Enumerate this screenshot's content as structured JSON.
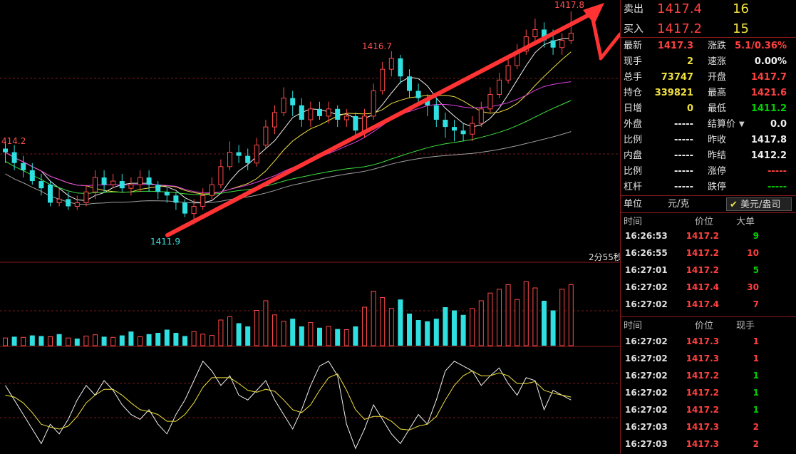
{
  "chart_data": {
    "type": "candlestick",
    "price_labels": {
      "high": "1417.8",
      "mid_high": "1416.7",
      "left": "414.2",
      "low": "1411.9"
    },
    "countdown": "2分55秒",
    "candles": [
      [
        1414.0,
        1413.9,
        1414.2,
        1413.6
      ],
      [
        1413.9,
        1413.6,
        1414.1,
        1413.4
      ],
      [
        1413.6,
        1413.4,
        1413.8,
        1413.2
      ],
      [
        1413.4,
        1413.1,
        1413.6,
        1413.0
      ],
      [
        1413.1,
        1412.9,
        1413.3,
        1412.7
      ],
      [
        1413.0,
        1412.5,
        1413.1,
        1412.4
      ],
      [
        1412.5,
        1412.6,
        1412.9,
        1412.4
      ],
      [
        1412.6,
        1412.4,
        1412.8,
        1412.3
      ],
      [
        1412.4,
        1412.5,
        1412.7,
        1412.3
      ],
      [
        1412.5,
        1412.8,
        1413.0,
        1412.4
      ],
      [
        1412.8,
        1413.2,
        1413.4,
        1412.6
      ],
      [
        1413.2,
        1413.0,
        1413.4,
        1412.8
      ],
      [
        1413.0,
        1413.1,
        1413.3,
        1412.9
      ],
      [
        1413.1,
        1412.9,
        1413.3,
        1412.8
      ],
      [
        1412.9,
        1413.0,
        1413.2,
        1412.7
      ],
      [
        1413.0,
        1413.2,
        1413.4,
        1412.8
      ],
      [
        1413.2,
        1413.0,
        1413.4,
        1412.8
      ],
      [
        1413.0,
        1412.8,
        1413.1,
        1412.6
      ],
      [
        1412.8,
        1412.7,
        1412.9,
        1412.5
      ],
      [
        1412.7,
        1412.5,
        1412.8,
        1412.3
      ],
      [
        1412.5,
        1412.2,
        1412.6,
        1412.1
      ],
      [
        1412.2,
        1412.4,
        1412.6,
        1411.9
      ],
      [
        1412.4,
        1412.7,
        1412.9,
        1412.3
      ],
      [
        1412.7,
        1413.0,
        1413.2,
        1412.6
      ],
      [
        1413.0,
        1413.5,
        1413.7,
        1412.9
      ],
      [
        1413.5,
        1413.9,
        1414.2,
        1413.4
      ],
      [
        1413.9,
        1413.8,
        1414.1,
        1413.6
      ],
      [
        1413.8,
        1413.6,
        1414.0,
        1413.4
      ],
      [
        1413.6,
        1414.1,
        1414.3,
        1413.5
      ],
      [
        1414.1,
        1414.6,
        1414.8,
        1414.0
      ],
      [
        1414.6,
        1415.0,
        1415.2,
        1414.4
      ],
      [
        1415.0,
        1415.4,
        1415.7,
        1414.9
      ],
      [
        1415.4,
        1415.2,
        1415.6,
        1414.9
      ],
      [
        1415.2,
        1414.8,
        1415.4,
        1414.6
      ],
      [
        1414.8,
        1415.1,
        1415.3,
        1414.6
      ],
      [
        1415.1,
        1414.9,
        1415.3,
        1414.8
      ],
      [
        1414.9,
        1415.1,
        1415.3,
        1414.7
      ],
      [
        1415.1,
        1414.8,
        1415.2,
        1414.6
      ],
      [
        1414.8,
        1414.9,
        1415.1,
        1414.6
      ],
      [
        1414.9,
        1414.5,
        1415.0,
        1414.3
      ],
      [
        1414.5,
        1414.9,
        1415.1,
        1414.3
      ],
      [
        1414.9,
        1415.6,
        1415.8,
        1414.8
      ],
      [
        1415.6,
        1416.2,
        1416.4,
        1415.5
      ],
      [
        1416.2,
        1416.5,
        1416.7,
        1416.0
      ],
      [
        1416.5,
        1416.0,
        1416.6,
        1415.8
      ],
      [
        1416.0,
        1415.6,
        1416.2,
        1415.4
      ],
      [
        1415.6,
        1415.4,
        1415.8,
        1415.2
      ],
      [
        1415.4,
        1415.2,
        1415.5,
        1414.9
      ],
      [
        1415.2,
        1414.8,
        1415.4,
        1414.6
      ],
      [
        1414.8,
        1414.6,
        1415.0,
        1414.3
      ],
      [
        1414.6,
        1414.5,
        1414.8,
        1414.2
      ],
      [
        1414.5,
        1414.4,
        1414.7,
        1414.2
      ],
      [
        1414.4,
        1414.7,
        1414.9,
        1414.2
      ],
      [
        1414.7,
        1415.1,
        1415.3,
        1414.6
      ],
      [
        1415.1,
        1415.5,
        1415.7,
        1415.0
      ],
      [
        1415.5,
        1415.9,
        1416.1,
        1415.4
      ],
      [
        1415.9,
        1416.3,
        1416.5,
        1415.8
      ],
      [
        1416.3,
        1416.7,
        1416.9,
        1416.2
      ],
      [
        1416.7,
        1417.1,
        1417.3,
        1416.6
      ],
      [
        1417.1,
        1417.3,
        1417.6,
        1416.9
      ],
      [
        1417.3,
        1417.0,
        1417.5,
        1416.8
      ],
      [
        1417.0,
        1416.8,
        1417.3,
        1416.6
      ],
      [
        1416.8,
        1417.0,
        1417.2,
        1416.6
      ],
      [
        1417.0,
        1417.2,
        1417.8,
        1416.9
      ]
    ],
    "volume": [
      12,
      14,
      13,
      16,
      15,
      14,
      18,
      12,
      11,
      15,
      17,
      14,
      13,
      16,
      22,
      14,
      18,
      20,
      25,
      20,
      15,
      22,
      18,
      16,
      40,
      45,
      35,
      30,
      55,
      70,
      48,
      38,
      42,
      30,
      36,
      28,
      30,
      26,
      25,
      30,
      60,
      85,
      75,
      58,
      72,
      50,
      40,
      38,
      42,
      60,
      55,
      48,
      58,
      70,
      82,
      88,
      95,
      72,
      100,
      90,
      70,
      55,
      88,
      95
    ],
    "volume_up": [
      1,
      0,
      1,
      0,
      0,
      1,
      0,
      1,
      0,
      1,
      1,
      0,
      1,
      0,
      0,
      1,
      0,
      0,
      0,
      0,
      0,
      1,
      1,
      1,
      1,
      1,
      0,
      0,
      1,
      1,
      1,
      1,
      0,
      0,
      1,
      0,
      1,
      0,
      1,
      0,
      1,
      1,
      1,
      1,
      0,
      0,
      0,
      0,
      0,
      0,
      0,
      0,
      1,
      1,
      1,
      1,
      1,
      1,
      1,
      1,
      0,
      0,
      1,
      1
    ],
    "kd_k": [
      0.7,
      0.55,
      0.4,
      0.25,
      0.1,
      0.3,
      0.2,
      0.35,
      0.55,
      0.7,
      0.6,
      0.75,
      0.65,
      0.5,
      0.4,
      0.35,
      0.45,
      0.3,
      0.2,
      0.4,
      0.55,
      0.75,
      0.95,
      0.85,
      0.7,
      0.8,
      0.6,
      0.55,
      0.65,
      0.75,
      0.55,
      0.4,
      0.25,
      0.45,
      0.7,
      0.9,
      0.95,
      0.8,
      0.3,
      0.05,
      0.25,
      0.5,
      0.35,
      0.2,
      0.1,
      0.25,
      0.4,
      0.3,
      0.55,
      0.85,
      0.95,
      0.9,
      0.85,
      0.7,
      0.8,
      0.88,
      0.72,
      0.6,
      0.78,
      0.75,
      0.45,
      0.65,
      0.6,
      0.55
    ],
    "kd_d": [
      0.6,
      0.58,
      0.52,
      0.42,
      0.3,
      0.27,
      0.25,
      0.28,
      0.38,
      0.52,
      0.6,
      0.66,
      0.66,
      0.6,
      0.52,
      0.45,
      0.43,
      0.4,
      0.33,
      0.33,
      0.4,
      0.52,
      0.68,
      0.78,
      0.78,
      0.78,
      0.72,
      0.65,
      0.63,
      0.66,
      0.64,
      0.55,
      0.45,
      0.42,
      0.5,
      0.65,
      0.78,
      0.82,
      0.65,
      0.45,
      0.35,
      0.38,
      0.38,
      0.33,
      0.25,
      0.24,
      0.28,
      0.3,
      0.38,
      0.55,
      0.7,
      0.8,
      0.85,
      0.8,
      0.8,
      0.83,
      0.8,
      0.72,
      0.72,
      0.74,
      0.65,
      0.62,
      0.6,
      0.58
    ]
  },
  "quote": {
    "sell_label": "卖出",
    "sell_price": "1417.4",
    "sell_vol": "16",
    "buy_label": "买入",
    "buy_price": "1417.2",
    "buy_vol": "15",
    "rows": [
      {
        "l1": "最新",
        "v1": "1417.3",
        "c1": "red",
        "l2": "涨跌",
        "v2": "5.1/0.36%",
        "c2": "red"
      },
      {
        "l1": "现手",
        "v1": "2",
        "c1": "yellow",
        "l2": "速涨",
        "v2": "0.00%",
        "c2": "white"
      },
      {
        "l1": "总手",
        "v1": "73747",
        "c1": "yellow",
        "l2": "开盘",
        "v2": "1417.7",
        "c2": "red"
      },
      {
        "l1": "持仓",
        "v1": "339821",
        "c1": "yellow",
        "l2": "最高",
        "v2": "1421.6",
        "c2": "red"
      },
      {
        "l1": "日增",
        "v1": "0",
        "c1": "yellow",
        "l2": "最低",
        "v2": "1411.2",
        "c2": "green"
      },
      {
        "l1": "外盘",
        "v1": "-----",
        "c1": "white",
        "l2": "结算价",
        "v2": "0.0",
        "c2": "white"
      },
      {
        "l1": "比例",
        "v1": "-----",
        "c1": "white",
        "l2": "昨收",
        "v2": "1417.8",
        "c2": "white"
      },
      {
        "l1": "内盘",
        "v1": "-----",
        "c1": "white",
        "l2": "昨结",
        "v2": "1412.2",
        "c2": "white"
      },
      {
        "l1": "比例",
        "v1": "-----",
        "c1": "white",
        "l2": "涨停",
        "v2": "-----",
        "c2": "red"
      },
      {
        "l1": "杠杆",
        "v1": "-----",
        "c1": "white",
        "l2": "跌停",
        "v2": "-----",
        "c2": "green"
      }
    ],
    "unit_label": "单位",
    "unit_value": "元/克",
    "unit_option": "美元/盎司",
    "big_hdr": {
      "time": "时间",
      "price": "价位",
      "qty": "大单"
    },
    "big_orders": [
      {
        "time": "16:26:53",
        "price": "1417.2",
        "qty": "9"
      },
      {
        "time": "16:26:55",
        "price": "1417.2",
        "qty": "10"
      },
      {
        "time": "16:27:01",
        "price": "1417.2",
        "qty": "5"
      },
      {
        "time": "16:27:02",
        "price": "1417.4",
        "qty": "30"
      },
      {
        "time": "16:27:02",
        "price": "1417.4",
        "qty": "7"
      }
    ],
    "tick_hdr": {
      "time": "时间",
      "price": "价位",
      "qty": "现手"
    },
    "ticks": [
      {
        "time": "16:27:02",
        "price": "1417.3",
        "qty": "1",
        "c": "red"
      },
      {
        "time": "16:27:02",
        "price": "1417.3",
        "qty": "1",
        "c": "red"
      },
      {
        "time": "16:27:02",
        "price": "1417.2",
        "qty": "1",
        "c": "green"
      },
      {
        "time": "16:27:02",
        "price": "1417.2",
        "qty": "1",
        "c": "green"
      },
      {
        "time": "16:27:02",
        "price": "1417.2",
        "qty": "1",
        "c": "green"
      },
      {
        "time": "16:27:03",
        "price": "1417.3",
        "qty": "2",
        "c": "red"
      },
      {
        "time": "16:27:03",
        "price": "1417.3",
        "qty": "2",
        "c": "red"
      }
    ]
  }
}
